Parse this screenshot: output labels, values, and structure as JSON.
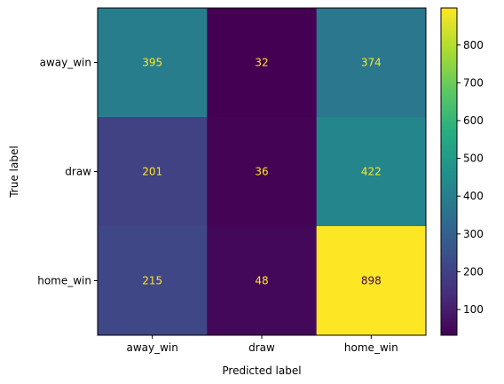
{
  "chart_data": {
    "type": "heatmap",
    "title": "",
    "xlabel": "Predicted label",
    "ylabel": "True label",
    "x_categories": [
      "away_win",
      "draw",
      "home_win"
    ],
    "y_categories": [
      "away_win",
      "draw",
      "home_win"
    ],
    "values": [
      [
        395,
        32,
        374
      ],
      [
        201,
        36,
        422
      ],
      [
        215,
        48,
        898
      ]
    ],
    "colormap": "viridis",
    "color_range": [
      32,
      898
    ],
    "colorbar_ticks": [
      100,
      200,
      300,
      400,
      500,
      600,
      700,
      800
    ],
    "text_color_on_dark": "#fde725",
    "text_color_on_light": "#440154",
    "grid": false,
    "colorbar_position": "right"
  }
}
